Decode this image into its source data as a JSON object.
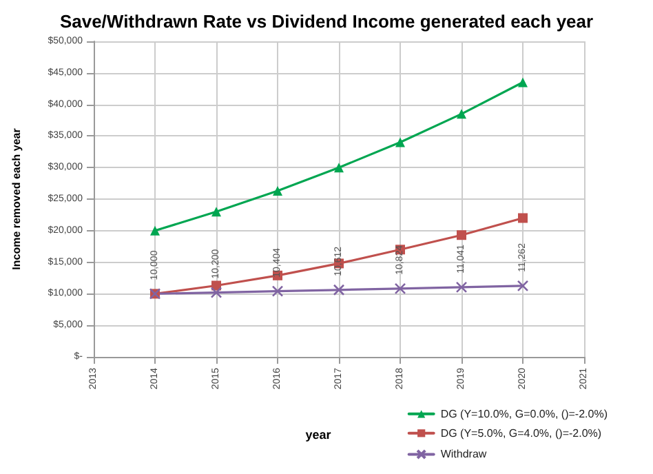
{
  "chart_data": {
    "type": "line",
    "title": "Save/Withdrawn Rate vs Dividend Income generated each year",
    "xlabel": "year",
    "ylabel": "Income removed each year",
    "x": [
      2014,
      2015,
      2016,
      2017,
      2018,
      2019,
      2020
    ],
    "series": [
      {
        "name": "DG (Y=10.0%, G=0.0%, ()=-2.0%)",
        "color": "#00a651",
        "marker": "triangle",
        "values": [
          20000,
          23000,
          26300,
          30000,
          34000,
          38500,
          43500
        ]
      },
      {
        "name": "DG (Y=5.0%, G=4.0%, ()=-2.0%)",
        "color": "#c0504d",
        "marker": "square",
        "values": [
          10000,
          11300,
          12900,
          14800,
          17000,
          19300,
          22000
        ]
      },
      {
        "name": "Withdraw",
        "color": "#8064a2",
        "marker": "cross",
        "values": [
          10000,
          10200,
          10404,
          10612,
          10824,
          11041,
          11262
        ],
        "value_labels": [
          "10,000",
          "10,200",
          "10,404",
          "10,612",
          "10,824",
          "11,041",
          "11,262"
        ]
      }
    ],
    "xlim": [
      2013,
      2021
    ],
    "xticks": [
      2013,
      2014,
      2015,
      2016,
      2017,
      2018,
      2019,
      2020,
      2021
    ],
    "ylim": [
      0,
      50000
    ],
    "yticks": [
      {
        "value": 0,
        "label": "$-"
      },
      {
        "value": 5000,
        "label": "$5,000"
      },
      {
        "value": 10000,
        "label": "$10,000"
      },
      {
        "value": 15000,
        "label": "$15,000"
      },
      {
        "value": 20000,
        "label": "$20,000"
      },
      {
        "value": 25000,
        "label": "$25,000"
      },
      {
        "value": 30000,
        "label": "$30,000"
      },
      {
        "value": 35000,
        "label": "$35,000"
      },
      {
        "value": 40000,
        "label": "$40,000"
      },
      {
        "value": 45000,
        "label": "$45,000"
      },
      {
        "value": 50000,
        "label": "$50,000"
      }
    ],
    "grid": true,
    "legend": "bottom right",
    "line_style": "solid"
  }
}
